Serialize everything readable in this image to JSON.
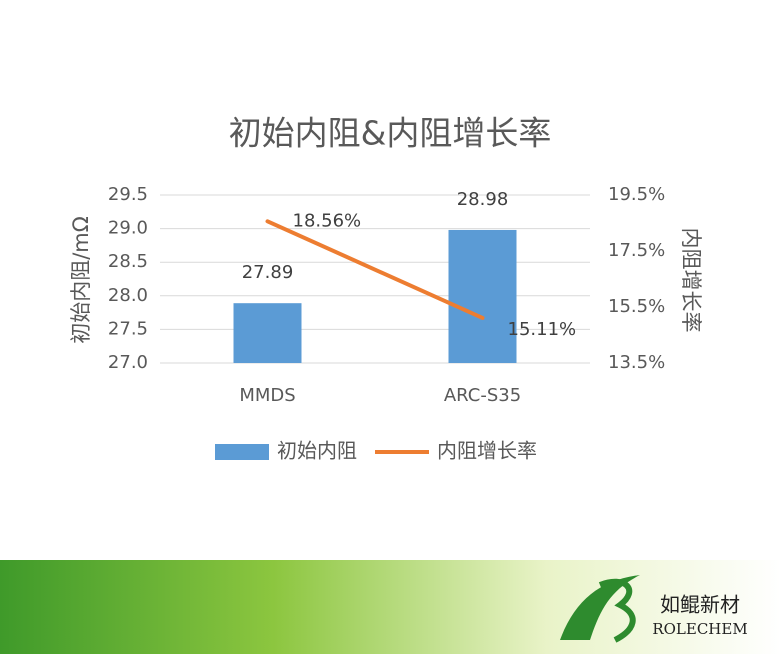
{
  "chart_data": {
    "type": "bar-line",
    "title": "初始内阻&内阻增长率",
    "ylabel": "初始内阻/mΩ",
    "y2label": "内阻增长率",
    "categories": [
      "MMDS",
      "ARC-S35"
    ],
    "series": [
      {
        "name": "初始内阻",
        "type": "bar",
        "color": "#5b9bd5",
        "values": [
          27.89,
          28.98
        ]
      },
      {
        "name": "内阻增长率",
        "type": "line",
        "axis": "y2",
        "color": "#ed7d31",
        "values": [
          18.56,
          15.11
        ],
        "value_labels": [
          "18.56%",
          "15.11%"
        ]
      }
    ],
    "ylim": [
      27.0,
      29.5
    ],
    "yticks": [
      {
        "value": 27,
        "label": "27.0"
      },
      27.5,
      {
        "value": 28,
        "label": "28.0"
      },
      28.5,
      {
        "value": 29,
        "label": "29.0"
      },
      29.5
    ],
    "y2lim": [
      13.5,
      19.5
    ],
    "y2ticks": [
      {
        "value": 13.5,
        "label": "13.5%"
      },
      {
        "value": 15.5,
        "label": "15.5%"
      },
      {
        "value": 17.5,
        "label": "17.5%"
      },
      {
        "value": 19.5,
        "label": "19.5%"
      }
    ],
    "grid": true,
    "legend": "bottom"
  },
  "logo": {
    "name": "如鲲新材",
    "text": "ROLECHEM"
  }
}
